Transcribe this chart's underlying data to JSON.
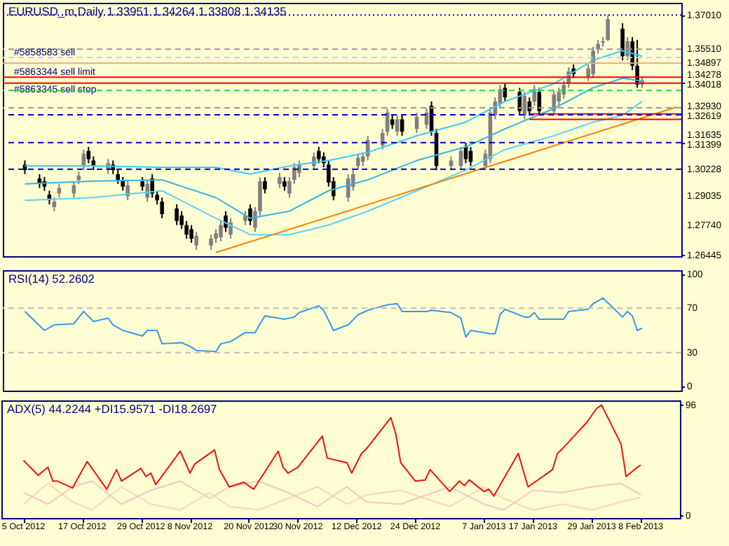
{
  "chart_data": [
    {
      "type": "candlestick",
      "title": "EURUSD_m,Daily  1.33951 1.34264 1.33808 1.34135",
      "tick_labels": "y",
      "colors": [
        "#000000",
        "#000000",
        "#000000",
        "#000000",
        "#808080",
        "#808080",
        "#808080",
        "#808080",
        "#808080",
        "#000000",
        "#000000",
        "#808080",
        "#000000",
        "#000000",
        "#000000",
        "#808080",
        "#000000",
        "#808080",
        "#000000",
        "#000000",
        "#000000",
        "#000000",
        "#000000",
        "#000000",
        "#000000",
        "#808080",
        "#808080",
        "#808080",
        "#808080",
        "#000000",
        "#808080",
        "#808080",
        "#000000",
        "#808080",
        "#808080",
        "#000000",
        "#808080",
        "#000000",
        "#808080",
        "#808080",
        "#808080",
        "#808080",
        "#000000",
        "#000000",
        "#000000",
        "#000000",
        "#808080",
        "#808080",
        "#808080",
        "#808080",
        "#808080",
        "#808080",
        "#808080",
        "#000000",
        "#808080",
        "#000000",
        "#808080",
        "#808080",
        "#000000",
        "#000000",
        "#808080",
        "#808080",
        "#000000",
        "#000000",
        "#808080",
        "#808080",
        "#808080",
        "#808080",
        "#000000",
        "#000000",
        "#808080",
        "#000000",
        "#808080",
        "#000000",
        "#808080",
        "#808080",
        "#808080",
        "#808080",
        "#000000",
        "#808080",
        "#808080",
        "#808080",
        "#808080",
        "#808080",
        "#000000",
        "#808080",
        "#000000",
        "#000000",
        "#808080"
      ],
      "x": [
        "2012-10-05",
        "2012-10-08",
        "2012-10-09",
        "2012-10-10",
        "2012-10-11",
        "2012-10-12",
        "2012-10-15",
        "2012-10-16",
        "2012-10-17",
        "2012-10-18",
        "2012-10-19",
        "2012-10-22",
        "2012-10-23",
        "2012-10-24",
        "2012-10-25",
        "2012-10-26",
        "2012-10-29",
        "2012-10-30",
        "2012-10-31",
        "2012-11-01",
        "2012-11-02",
        "2012-11-05",
        "2012-11-06",
        "2012-11-07",
        "2012-11-08",
        "2012-11-09",
        "2012-11-12",
        "2012-11-13",
        "2012-11-14",
        "2012-11-15",
        "2012-11-16",
        "2012-11-19",
        "2012-11-20",
        "2012-11-21",
        "2012-11-22",
        "2012-11-23",
        "2012-11-26",
        "2012-11-27",
        "2012-11-28",
        "2012-11-29",
        "2012-11-30",
        "2012-12-03",
        "2012-12-04",
        "2012-12-05",
        "2012-12-06",
        "2012-12-07",
        "2012-12-10",
        "2012-12-11",
        "2012-12-12",
        "2012-12-13",
        "2012-12-14",
        "2012-12-17",
        "2012-12-18",
        "2012-12-19",
        "2012-12-20",
        "2012-12-21",
        "2012-12-24",
        "2012-12-26",
        "2012-12-27",
        "2012-12-28",
        "2012-12-31",
        "2013-01-02",
        "2013-01-03",
        "2013-01-04",
        "2013-01-07",
        "2013-01-08",
        "2013-01-09",
        "2013-01-10",
        "2013-01-11",
        "2013-01-14",
        "2013-01-15",
        "2013-01-16",
        "2013-01-17",
        "2013-01-18",
        "2013-01-21",
        "2013-01-22",
        "2013-01-23",
        "2013-01-24",
        "2013-01-25",
        "2013-01-28",
        "2013-01-29",
        "2013-01-30",
        "2013-01-31",
        "2013-02-01",
        "2013-02-04",
        "2013-02-05",
        "2013-02-06",
        "2013-02-07",
        "2013-02-08"
      ],
      "ohlc": [
        [
          1.3043,
          1.3061,
          1.3001,
          1.3019
        ],
        [
          1.2982,
          1.3001,
          1.294,
          1.2958
        ],
        [
          1.297,
          1.2988,
          1.2928,
          1.2946
        ],
        [
          1.291,
          1.2928,
          1.2868,
          1.2886
        ],
        [
          1.2856,
          1.2898,
          1.2838,
          1.288
        ],
        [
          1.2916,
          1.2958,
          1.2898,
          1.294
        ],
        [
          1.2916,
          1.297,
          1.2898,
          1.2952
        ],
        [
          1.2976,
          1.3013,
          1.2958,
          1.2994
        ],
        [
          1.3037,
          1.3109,
          1.3019,
          1.3091
        ],
        [
          1.3103,
          1.3121,
          1.3049,
          1.3067
        ],
        [
          1.3061,
          1.3079,
          1.3019,
          1.3037
        ],
        [
          1.3019,
          1.3067,
          1.3001,
          1.3049
        ],
        [
          1.3043,
          1.3061,
          1.3001,
          1.3019
        ],
        [
          1.3001,
          1.3019,
          1.2958,
          1.2976
        ],
        [
          1.297,
          1.2988,
          1.2928,
          1.2946
        ],
        [
          1.2904,
          1.297,
          1.2886,
          1.2952
        ],
        [
          1.297,
          1.2988,
          1.2928,
          1.2946
        ],
        [
          1.2898,
          1.2976,
          1.288,
          1.2958
        ],
        [
          1.2982,
          1.3001,
          1.2898,
          1.2916
        ],
        [
          1.291,
          1.2928,
          1.2868,
          1.2886
        ],
        [
          1.288,
          1.2898,
          1.2807,
          1.2825
        ],
        [
          1.285,
          1.2868,
          1.2777,
          1.2795
        ],
        [
          1.2819,
          1.2838,
          1.2759,
          1.2777
        ],
        [
          1.2777,
          1.2795,
          1.2717,
          1.2735
        ],
        [
          1.2759,
          1.2777,
          1.2699,
          1.2717
        ],
        [
          1.2687,
          1.2747,
          1.2668,
          1.2729
        ],
        [
          1.2687,
          1.2735,
          1.2668,
          1.2717
        ],
        [
          1.2717,
          1.2759,
          1.2699,
          1.2741
        ],
        [
          1.2723,
          1.2795,
          1.2705,
          1.2777
        ],
        [
          1.2819,
          1.2838,
          1.2747,
          1.2765
        ],
        [
          1.2735,
          1.2807,
          1.2717,
          1.2789
        ],
        [
          1.2795,
          1.2838,
          1.2777,
          1.2819
        ],
        [
          1.285,
          1.2868,
          1.2777,
          1.2795
        ],
        [
          1.2765,
          1.2856,
          1.2747,
          1.2838
        ],
        [
          1.2838,
          1.2988,
          1.2819,
          1.297
        ],
        [
          1.297,
          1.2988,
          1.2916,
          1.2934
        ],
        [
          1.2958,
          1.3007,
          1.294,
          1.2988
        ],
        [
          1.297,
          1.2988,
          1.2928,
          1.2946
        ],
        [
          1.2916,
          1.2988,
          1.2898,
          1.297
        ],
        [
          1.2976,
          1.3049,
          1.2958,
          1.3031
        ],
        [
          1.3007,
          1.3061,
          1.2988,
          1.3043
        ],
        [
          1.3037,
          1.3097,
          1.3019,
          1.3079
        ],
        [
          1.3103,
          1.3121,
          1.3049,
          1.3067
        ],
        [
          1.3079,
          1.3097,
          1.3031,
          1.3049
        ],
        [
          1.3043,
          1.3061,
          1.2946,
          1.2964
        ],
        [
          1.297,
          1.2988,
          1.2886,
          1.2904
        ],
        [
          1.2898,
          1.3001,
          1.288,
          1.2982
        ],
        [
          1.2946,
          1.3019,
          1.2928,
          1.3001
        ],
        [
          1.3037,
          1.3091,
          1.3019,
          1.3073
        ],
        [
          1.3055,
          1.3097,
          1.3037,
          1.3079
        ],
        [
          1.3079,
          1.317,
          1.3061,
          1.3151
        ],
        [
          1.3127,
          1.32,
          1.3109,
          1.3182
        ],
        [
          1.3188,
          1.329,
          1.317,
          1.3272
        ],
        [
          1.3242,
          1.326,
          1.32,
          1.3218
        ],
        [
          1.3188,
          1.326,
          1.317,
          1.3242
        ],
        [
          1.3242,
          1.326,
          1.317,
          1.3188
        ],
        [
          1.32,
          1.3272,
          1.3182,
          1.3254
        ],
        [
          1.3218,
          1.329,
          1.32,
          1.3272
        ],
        [
          1.3302,
          1.3321,
          1.317,
          1.3188
        ],
        [
          1.3182,
          1.32,
          1.3019,
          1.3037
        ],
        [
          1.3037,
          1.3079,
          1.3019,
          1.3061
        ],
        [
          1.3037,
          1.3121,
          1.3019,
          1.3103
        ],
        [
          1.3121,
          1.3139,
          1.3049,
          1.3067
        ],
        [
          1.3103,
          1.3121,
          1.3037,
          1.3055
        ],
        [
          1.3037,
          1.3109,
          1.3019,
          1.3091
        ],
        [
          1.3067,
          1.329,
          1.3049,
          1.3272
        ],
        [
          1.326,
          1.3339,
          1.3242,
          1.3321
        ],
        [
          1.3309,
          1.3393,
          1.329,
          1.3375
        ],
        [
          1.3381,
          1.3399,
          1.3321,
          1.3339
        ],
        [
          1.3363,
          1.3381,
          1.326,
          1.3278
        ],
        [
          1.326,
          1.3363,
          1.3242,
          1.3345
        ],
        [
          1.3321,
          1.3339,
          1.326,
          1.3278
        ],
        [
          1.3321,
          1.3393,
          1.3302,
          1.3375
        ],
        [
          1.3363,
          1.3381,
          1.326,
          1.3278
        ],
        [
          1.3278,
          1.3369,
          1.326,
          1.3351
        ],
        [
          1.3321,
          1.3381,
          1.3302,
          1.3363
        ],
        [
          1.3351,
          1.3411,
          1.3333,
          1.3393
        ],
        [
          1.3399,
          1.3472,
          1.3381,
          1.3453
        ],
        [
          1.3466,
          1.3484,
          1.3423,
          1.3441
        ],
        [
          1.3429,
          1.3484,
          1.3411,
          1.3466
        ],
        [
          1.3441,
          1.3562,
          1.3423,
          1.3544
        ],
        [
          1.355,
          1.3592,
          1.3532,
          1.3574
        ],
        [
          1.358,
          1.3604,
          1.3562,
          1.3586
        ],
        [
          1.3592,
          1.3701,
          1.3586,
          1.3683
        ],
        [
          1.3641,
          1.3665,
          1.3502,
          1.352
        ],
        [
          1.352,
          1.3604,
          1.3502,
          1.3586
        ],
        [
          1.3586,
          1.3604,
          1.3459,
          1.3478
        ],
        [
          1.3478,
          1.3592,
          1.3381,
          1.3395
        ],
        [
          1.33951,
          1.34264,
          1.33808,
          1.34135
        ]
      ],
      "series": [
        {
          "type": "line",
          "color": "#33ccff",
          "x": [
            "2012-10-05",
            "2012-10-19",
            "2012-11-02",
            "2012-11-13",
            "2012-11-20",
            "2012-11-28",
            "2012-12-06",
            "2012-12-14",
            "2012-12-24",
            "2013-01-03",
            "2013-01-11",
            "2013-01-21",
            "2013-01-29",
            "2013-02-04",
            "2013-02-08"
          ],
          "values": [
            1.3037,
            1.3037,
            1.3031,
            1.3031,
            1.3001,
            1.3037,
            1.3061,
            1.3097,
            1.317,
            1.323,
            1.3321,
            1.3399,
            1.3502,
            1.3544,
            1.352
          ]
        },
        {
          "type": "line",
          "color": "#2fb4ee",
          "x": [
            "2012-10-05",
            "2012-10-19",
            "2012-11-02",
            "2012-11-13",
            "2012-11-20",
            "2012-11-28",
            "2012-12-06",
            "2012-12-14",
            "2012-12-24",
            "2013-01-03",
            "2013-01-11",
            "2013-01-21",
            "2013-01-29",
            "2013-02-04",
            "2013-02-08"
          ],
          "values": [
            1.2958,
            1.297,
            1.2976,
            1.2898,
            1.2807,
            1.2838,
            1.2928,
            1.2976,
            1.3061,
            1.3121,
            1.32,
            1.329,
            1.3381,
            1.3423,
            1.3411
          ]
        },
        {
          "type": "line",
          "color": "#55d4ff",
          "x": [
            "2012-10-05",
            "2012-10-19",
            "2012-11-02",
            "2012-11-13",
            "2012-11-20",
            "2012-11-28",
            "2012-12-06",
            "2012-12-14",
            "2012-12-24",
            "2013-01-03",
            "2013-01-11",
            "2013-01-21",
            "2013-01-29",
            "2013-02-04",
            "2013-02-08"
          ],
          "values": [
            1.2886,
            1.2898,
            1.2928,
            1.2807,
            1.2735,
            1.2735,
            1.2777,
            1.2838,
            1.2928,
            1.3019,
            1.3109,
            1.317,
            1.323,
            1.326,
            1.3321
          ]
        },
        {
          "type": "line",
          "color": "#ff8000",
          "x": [
            "2012-11-13",
            "2013-02-15"
          ],
          "values": [
            1.2656,
            1.3296
          ]
        },
        {
          "type": "line",
          "color": "#ff0000",
          "x": [
            "2013-01-16",
            "2013-02-16"
          ],
          "values": [
            1.3266,
            1.3266
          ]
        },
        {
          "type": "line",
          "color": "#ff0000",
          "x": [
            "2013-01-16",
            "2013-02-16"
          ],
          "values": [
            1.3242,
            1.3242
          ]
        }
      ],
      "ref_lines": [
        {
          "axis": "y",
          "value": 1.3701,
          "color": "#0000cc",
          "line_style": "dotted"
        },
        {
          "axis": "y",
          "value": 1.3551,
          "color": "#999999",
          "line_style": "dashed"
        },
        {
          "axis": "y",
          "value": 1.3514,
          "color": "#cccccc",
          "line_style": "dashed",
          "label": "#5858583 sell"
        },
        {
          "axis": "y",
          "value": 1.34897,
          "color": "#f4a582",
          "line_style": "solid"
        },
        {
          "axis": "y",
          "value": 1.34278,
          "color": "#ff0000",
          "line_style": "solid",
          "label": "#5863344 sell limit"
        },
        {
          "axis": "y",
          "value": 1.34018,
          "color": "#ff0000",
          "line_style": "solid",
          "label": "#5863345 sell stop"
        },
        {
          "axis": "y",
          "value": 1.3369,
          "color": "#33cc33",
          "line_style": "dashed"
        },
        {
          "axis": "y",
          "value": 1.3293,
          "color": "#999999",
          "line_style": "dashed"
        },
        {
          "axis": "y",
          "value": 1.32619,
          "color": "#0000cc",
          "line_style": "dashed"
        },
        {
          "axis": "y",
          "value": 1.31399,
          "color": "#0000cc",
          "line_style": "dashed"
        },
        {
          "axis": "y",
          "value": 1.30228,
          "color": "#0000cc",
          "line_style": "dashed"
        }
      ],
      "xlim": [
        "2012-09-30T12:00",
        "2013-02-16"
      ],
      "ylim": [
        1.264,
        1.3755
      ],
      "yticks": [
        {
          "value": 1.3701,
          "label": "1.37010"
        },
        {
          "value": 1.3551,
          "label": "1.35510"
        },
        {
          "value": 1.34897,
          "label": "1.34897"
        },
        {
          "value": 1.34278,
          "label": "1.34278"
        },
        {
          "value": 1.34018,
          "label": "1.34018"
        },
        {
          "value": 1.3293,
          "label": "1.32930"
        },
        {
          "value": 1.32619,
          "label": "1.32619"
        },
        {
          "value": 1.31635,
          "label": "1.31635"
        },
        {
          "value": 1.31399,
          "label": "1.31399"
        },
        {
          "value": 1.30228,
          "label": "1.30228"
        },
        {
          "value": 1.29035,
          "label": "1.29035"
        },
        {
          "value": 1.2774,
          "label": "1.27740"
        },
        {
          "value": 1.26445,
          "label": "1.26445"
        }
      ]
    },
    {
      "type": "line",
      "title": "RSI(14) 52.2602",
      "tick_labels": "y",
      "x": [
        "2012-10-05",
        "2012-10-09",
        "2012-10-11",
        "2012-10-15",
        "2012-10-17",
        "2012-10-19",
        "2012-10-22",
        "2012-10-23",
        "2012-10-25",
        "2012-10-29",
        "2012-10-30",
        "2012-11-01",
        "2012-11-02",
        "2012-11-06",
        "2012-11-08",
        "2012-11-09",
        "2012-11-13",
        "2012-11-14",
        "2012-11-16",
        "2012-11-19",
        "2012-11-21",
        "2012-11-22",
        "2012-11-23",
        "2012-11-27",
        "2012-11-29",
        "2012-11-30",
        "2012-12-04",
        "2012-12-05",
        "2012-12-07",
        "2012-12-10",
        "2012-12-12",
        "2012-12-13",
        "2012-12-14",
        "2012-12-18",
        "2012-12-20",
        "2012-12-21",
        "2012-12-26",
        "2012-12-27",
        "2012-12-31",
        "2013-01-02",
        "2013-01-03",
        "2013-01-04",
        "2013-01-08",
        "2013-01-09",
        "2013-01-10",
        "2013-01-11",
        "2013-01-15",
        "2013-01-16",
        "2013-01-17",
        "2013-01-18",
        "2013-01-23",
        "2013-01-24",
        "2013-01-28",
        "2013-01-29",
        "2013-01-31",
        "2013-02-04",
        "2013-02-05",
        "2013-02-06",
        "2013-02-07",
        "2013-02-08"
      ],
      "series": [
        {
          "color": "#3399ee",
          "values": [
            67,
            50,
            55,
            56,
            67,
            58,
            61,
            55,
            50,
            45,
            50,
            50,
            38,
            39,
            35,
            32,
            31,
            38,
            40,
            48,
            48,
            56,
            63,
            60,
            62,
            66,
            72,
            68,
            50,
            55,
            64,
            66,
            68,
            73,
            74,
            67,
            67,
            68,
            66,
            61,
            44,
            50,
            47,
            47,
            64,
            69,
            62,
            62,
            66,
            60,
            60,
            67,
            69,
            74,
            79,
            62,
            67,
            63,
            50,
            52
          ]
        }
      ],
      "ref_lines": [
        {
          "axis": "y",
          "value": 70,
          "color": "#c0c0c0",
          "line_style": "dashed"
        },
        {
          "axis": "y",
          "value": 30,
          "color": "#c0c0c0",
          "line_style": "dashed"
        }
      ],
      "xlim": [
        "2012-09-30T12:00",
        "2013-02-16"
      ],
      "ylim": [
        -4,
        104
      ],
      "yticks": [
        0,
        30,
        70,
        100
      ]
    },
    {
      "type": "line",
      "title": "ADX(5) 44.2244 +DI15.9571 -DI18.2697",
      "series": [
        {
          "color": "#fbd9b5",
          "x": [
            "2012-10-05",
            "2012-10-10",
            "2012-10-15",
            "2012-10-19",
            "2012-10-25",
            "2012-10-31",
            "2012-11-06",
            "2012-11-12",
            "2012-11-16",
            "2012-11-22",
            "2012-11-28",
            "2012-12-04",
            "2012-12-10",
            "2012-12-14",
            "2012-12-21",
            "2012-12-31",
            "2013-01-07",
            "2013-01-11",
            "2013-01-17",
            "2013-01-23",
            "2013-01-29",
            "2013-02-04",
            "2013-02-08"
          ],
          "values": [
            10,
            28,
            12,
            5,
            25,
            10,
            5,
            20,
            8,
            5,
            15,
            25,
            10,
            18,
            22,
            8,
            25,
            15,
            5,
            10,
            5,
            12,
            16
          ]
        },
        {
          "color": "#f7c6c6",
          "x": [
            "2012-10-05",
            "2012-10-10",
            "2012-10-15",
            "2012-10-19",
            "2012-10-25",
            "2012-10-31",
            "2012-11-06",
            "2012-11-12",
            "2012-11-16",
            "2012-11-22",
            "2012-11-28",
            "2012-12-04",
            "2012-12-10",
            "2012-12-14",
            "2012-12-21",
            "2012-12-31",
            "2013-01-07",
            "2013-01-11",
            "2013-01-17",
            "2013-01-23",
            "2013-01-29",
            "2013-02-04",
            "2013-02-08"
          ],
          "values": [
            20,
            10,
            25,
            30,
            10,
            22,
            30,
            15,
            25,
            30,
            20,
            8,
            25,
            12,
            10,
            25,
            10,
            5,
            22,
            20,
            25,
            28,
            18
          ]
        },
        {
          "color": "#ee1111",
          "x": [
            "2012-10-05",
            "2012-10-08",
            "2012-10-10",
            "2012-10-11",
            "2012-10-12",
            "2012-10-15",
            "2012-10-18",
            "2012-10-22",
            "2012-10-24",
            "2012-10-25",
            "2012-10-29",
            "2012-10-30",
            "2012-10-31",
            "2012-11-01",
            "2012-11-06",
            "2012-11-08",
            "2012-11-09",
            "2012-11-13",
            "2012-11-14",
            "2012-11-16",
            "2012-11-19",
            "2012-11-21",
            "2012-11-26",
            "2012-11-27",
            "2012-11-28",
            "2012-11-30",
            "2012-12-05",
            "2012-12-06",
            "2012-12-10",
            "2012-12-11",
            "2012-12-13",
            "2012-12-14",
            "2012-12-19",
            "2012-12-20",
            "2012-12-21",
            "2012-12-24",
            "2012-12-26",
            "2012-12-27",
            "2012-12-31",
            "2013-01-02",
            "2013-01-03",
            "2013-01-04",
            "2013-01-07",
            "2013-01-08",
            "2013-01-09",
            "2013-01-14",
            "2013-01-16",
            "2013-01-21",
            "2013-01-22",
            "2013-01-23",
            "2013-01-28",
            "2013-01-30",
            "2013-01-31",
            "2013-02-04",
            "2013-02-05",
            "2013-02-07",
            "2013-02-08"
          ],
          "values": [
            48,
            35,
            42,
            30,
            30,
            24,
            47,
            23,
            40,
            30,
            41,
            34,
            37,
            27,
            56,
            37,
            45,
            57,
            40,
            25,
            29,
            23,
            56,
            42,
            37,
            42,
            69,
            50,
            46,
            37,
            54,
            58,
            85,
            71,
            46,
            30,
            31,
            40,
            21,
            30,
            26,
            31,
            21,
            23,
            17,
            54,
            25,
            40,
            54,
            58,
            81,
            93,
            96,
            62,
            34,
            41,
            44
          ]
        }
      ],
      "xlim": [
        "2012-09-30T12:00",
        "2013-02-16"
      ],
      "xticks": [
        {
          "value": "2012-10-05",
          "label": "5 Oct 2012"
        },
        {
          "value": "2012-10-17",
          "label": "17 Oct 2012"
        },
        {
          "value": "2012-10-29",
          "label": "29 Oct 2012"
        },
        {
          "value": "2012-11-08",
          "label": "8 Nov 2012"
        },
        {
          "value": "2012-11-20",
          "label": "20 Nov 2012"
        },
        {
          "value": "2012-11-30",
          "label": "30 Nov 2012"
        },
        {
          "value": "2012-12-12",
          "label": "12 Dec 2012"
        },
        {
          "value": "2012-12-24",
          "label": "24 Dec 2012"
        },
        {
          "value": "2013-01-07",
          "label": "7 Jan 2013"
        },
        {
          "value": "2013-01-17",
          "label": "17 Jan 2013"
        },
        {
          "value": "2013-01-29",
          "label": "29 Jan 2013"
        },
        {
          "value": "2013-02-08",
          "label": "8 Feb 2013"
        }
      ],
      "ylim": [
        -2,
        100
      ],
      "yticks": [
        0,
        96
      ]
    }
  ]
}
